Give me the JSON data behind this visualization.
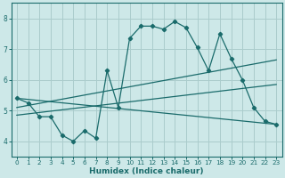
{
  "xlabel": "Humidex (Indice chaleur)",
  "bg_color": "#cde8e8",
  "line_color": "#1a6b6b",
  "grid_color": "#aacccc",
  "xlim": [
    -0.5,
    23.5
  ],
  "ylim": [
    3.5,
    8.5
  ],
  "yticks": [
    4,
    5,
    6,
    7,
    8
  ],
  "xticks": [
    0,
    1,
    2,
    3,
    4,
    5,
    6,
    7,
    8,
    9,
    10,
    11,
    12,
    13,
    14,
    15,
    16,
    17,
    18,
    19,
    20,
    21,
    22,
    23
  ],
  "line1_x": [
    0,
    1,
    2,
    3,
    4,
    5,
    6,
    7,
    8,
    9,
    10,
    11,
    12,
    13,
    14,
    15,
    16,
    17,
    18,
    19,
    20,
    21,
    22,
    23
  ],
  "line1_y": [
    5.4,
    5.25,
    4.8,
    4.8,
    4.2,
    4.0,
    4.35,
    4.1,
    6.3,
    5.1,
    7.35,
    7.75,
    7.75,
    7.65,
    7.9,
    7.7,
    7.05,
    6.3,
    7.5,
    6.7,
    6.0,
    5.1,
    4.65,
    4.55
  ],
  "line2_x": [
    0,
    23
  ],
  "line2_y": [
    5.4,
    4.55
  ],
  "line3_x": [
    0,
    23
  ],
  "line3_y": [
    5.1,
    6.65
  ],
  "line4_x": [
    0,
    23
  ],
  "line4_y": [
    4.85,
    5.85
  ]
}
